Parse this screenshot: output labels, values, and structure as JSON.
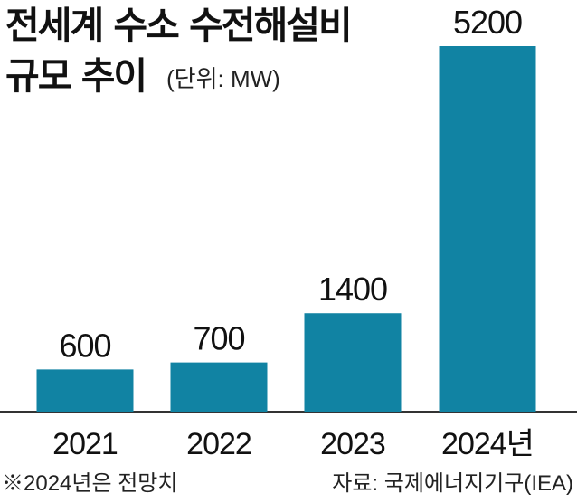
{
  "colors": {
    "bar": "#1183a3",
    "axis": "#333333",
    "text": "#1a1a1a"
  },
  "unit_label": "(단위: MW)",
  "footnote": "※2024년은 전망치",
  "source": "자료: 국제에너지기구(IEA)",
  "chart_data": {
    "type": "bar",
    "title_lines": [
      "전세계 수소 수전해설비",
      "규모 추이"
    ],
    "categories": [
      "2021",
      "2022",
      "2023",
      "2024년"
    ],
    "values": [
      600,
      700,
      1400,
      5200
    ],
    "data_labels": [
      "600",
      "700",
      "1400",
      "5200"
    ],
    "xlabel": "",
    "ylabel": "",
    "ylim": [
      0,
      5200
    ],
    "grid": false,
    "legend": "none"
  }
}
